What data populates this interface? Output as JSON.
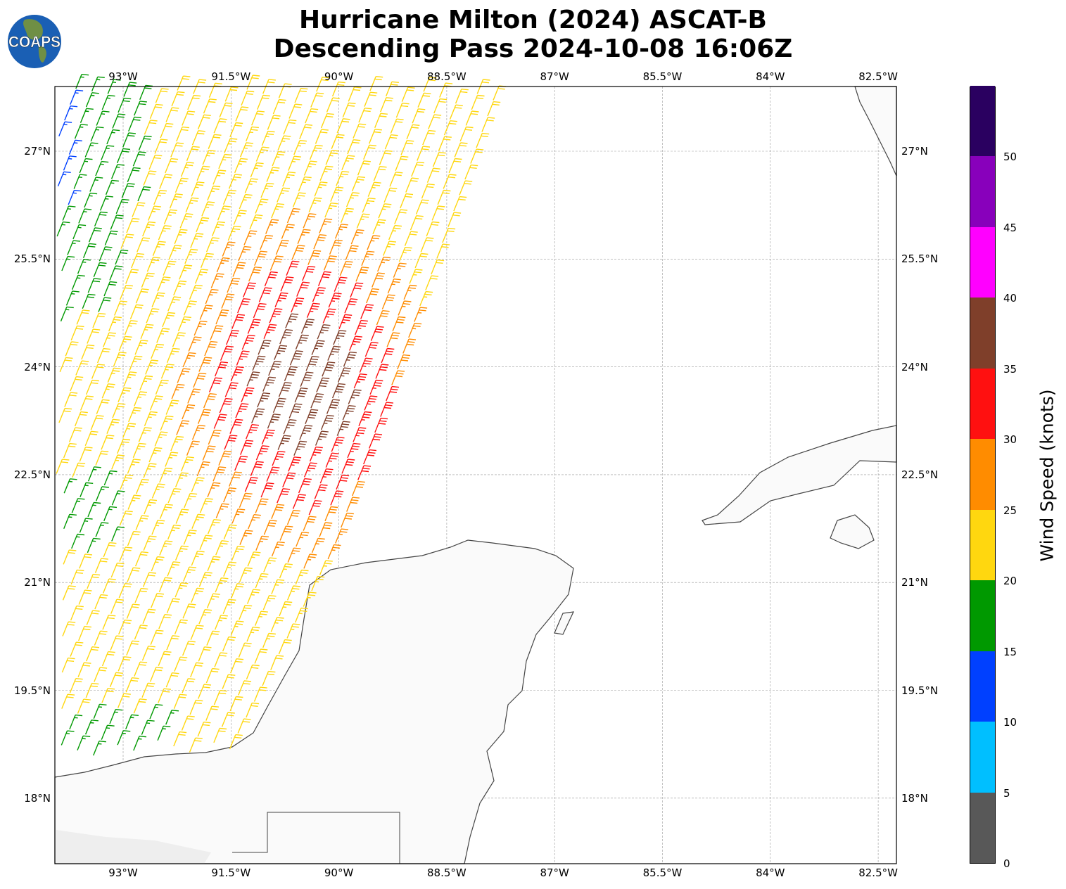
{
  "title_line1": "Hurricane Milton (2024) ASCAT-B",
  "title_line2": "Descending Pass 2024-10-08 16:06Z",
  "logo_text": "COAPS",
  "lon_ticks": [
    "93°W",
    "91.5°W",
    "90°W",
    "88.5°W",
    "87°W",
    "85.5°W",
    "84°W",
    "82.5°W"
  ],
  "lat_ticks": [
    "27°N",
    "25.5°N",
    "24°N",
    "22.5°N",
    "21°N",
    "19.5°N",
    "18°N"
  ],
  "colorbar": {
    "label": "Wind Speed (knots)",
    "ticks": [
      "0",
      "5",
      "10",
      "15",
      "20",
      "25",
      "30",
      "35",
      "40",
      "45",
      "50"
    ],
    "colors": [
      "#585858",
      "#00bfff",
      "#0040ff",
      "#009900",
      "#ffd70f",
      "#ff8c00",
      "#ff1010",
      "#7f3f2a",
      "#ff00ff",
      "#8800bb",
      "#2a0060"
    ]
  },
  "land_color": "#fafafa",
  "coast_color": "#444444"
}
